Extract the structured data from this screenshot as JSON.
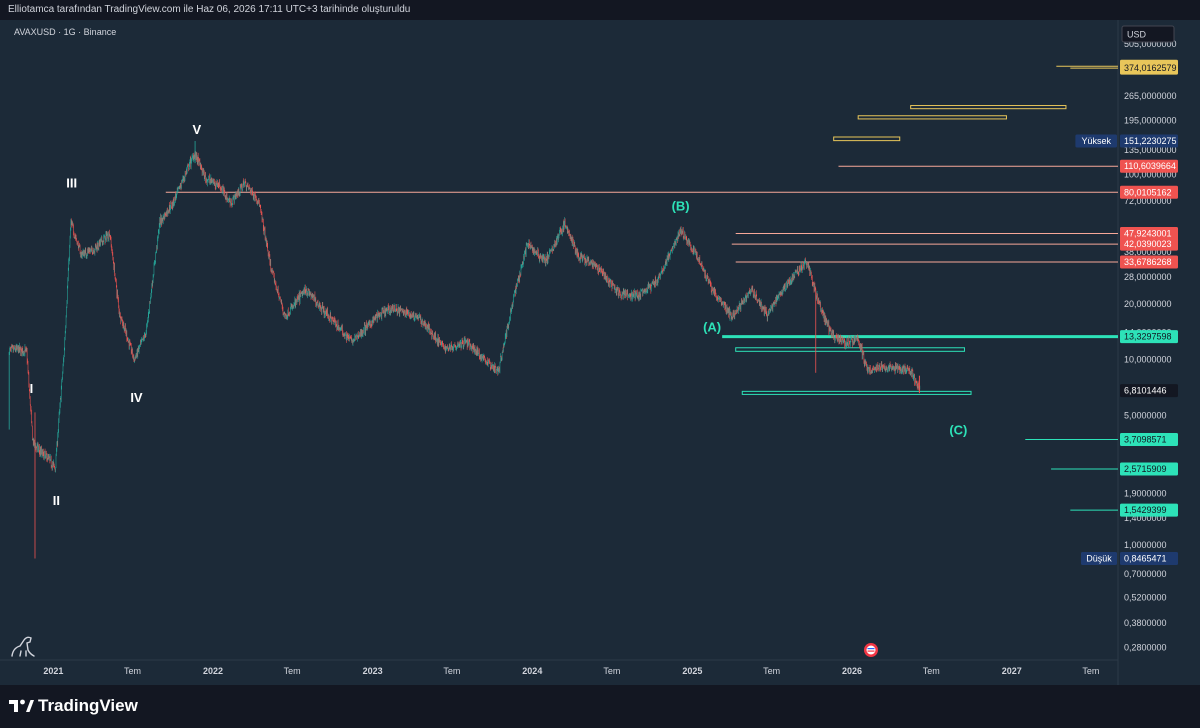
{
  "header": {
    "attribution": "Elliotamca tarafından TradingView.com ile Haz 06, 2026 17:11 UTC+3 tarihinde oluşturuldu"
  },
  "symbol_info": "AVAXUSD · 1G · Binance",
  "currency_button": "USD",
  "brand": {
    "name": "TradingView"
  },
  "colors": {
    "bg": "#1c2a38",
    "up": "#26a69a",
    "down": "#ef5350",
    "resistance": "#f7a899",
    "support": "#2de2b8",
    "box_yellow": "#e8c65a",
    "high_low_badge": "#1e3a6e"
  },
  "chart_data": {
    "type": "candlestick",
    "scale": "log",
    "ylim": [
      0.24,
      680
    ],
    "xlim": [
      "2020-09-01",
      "2027-09-01"
    ],
    "x_ticks": [
      {
        "label": "2021",
        "date": "2021-01-01"
      },
      {
        "label": "Tem",
        "date": "2021-07-01"
      },
      {
        "label": "2022",
        "date": "2022-01-01"
      },
      {
        "label": "Tem",
        "date": "2022-07-01"
      },
      {
        "label": "2023",
        "date": "2023-01-01"
      },
      {
        "label": "Tem",
        "date": "2023-07-01"
      },
      {
        "label": "2024",
        "date": "2024-01-01"
      },
      {
        "label": "Tem",
        "date": "2024-07-01"
      },
      {
        "label": "2025",
        "date": "2025-01-01"
      },
      {
        "label": "Tem",
        "date": "2025-07-01"
      },
      {
        "label": "2026",
        "date": "2026-01-01"
      },
      {
        "label": "Tem",
        "date": "2026-07-01"
      },
      {
        "label": "2027",
        "date": "2027-01-01"
      },
      {
        "label": "Tem",
        "date": "2027-07-01"
      }
    ],
    "y_ticks": [
      {
        "label": "505,0000000",
        "value": 505
      },
      {
        "label": "265,0000000",
        "value": 265
      },
      {
        "label": "195,0000000",
        "value": 195
      },
      {
        "label": "135,0000000",
        "value": 135
      },
      {
        "label": "100,0000000",
        "value": 100
      },
      {
        "label": "72,0000000",
        "value": 72
      },
      {
        "label": "38,0000000",
        "value": 38
      },
      {
        "label": "28,0000000",
        "value": 28
      },
      {
        "label": "20,0000000",
        "value": 20
      },
      {
        "label": "14,0000000",
        "value": 14
      },
      {
        "label": "10,0000000",
        "value": 10
      },
      {
        "label": "5,0000000",
        "value": 5
      },
      {
        "label": "1,9000000",
        "value": 1.9
      },
      {
        "label": "1,4000000",
        "value": 1.4
      },
      {
        "label": "1,0000000",
        "value": 1.0
      },
      {
        "label": "0,7000000",
        "value": 0.7
      },
      {
        "label": "0,5200000",
        "value": 0.52
      },
      {
        "label": "0,3800000",
        "value": 0.38
      },
      {
        "label": "0,2800000",
        "value": 0.28
      }
    ],
    "price_path": [
      [
        "2020-09-22",
        11.2
      ],
      [
        "2020-10-10",
        11.4
      ],
      [
        "2020-11-01",
        11.0
      ],
      [
        "2020-11-15",
        3.6
      ],
      [
        "2020-12-01",
        3.2
      ],
      [
        "2020-12-20",
        2.95
      ],
      [
        "2021-01-05",
        2.6
      ],
      [
        "2021-01-25",
        10.5
      ],
      [
        "2021-02-10",
        55
      ],
      [
        "2021-03-05",
        37
      ],
      [
        "2021-04-01",
        39
      ],
      [
        "2021-05-10",
        48
      ],
      [
        "2021-06-01",
        18
      ],
      [
        "2021-07-05",
        10
      ],
      [
        "2021-08-01",
        14
      ],
      [
        "2021-09-01",
        55
      ],
      [
        "2021-10-01",
        70
      ],
      [
        "2021-11-20",
        130
      ],
      [
        "2021-12-15",
        95
      ],
      [
        "2022-01-15",
        88
      ],
      [
        "2022-02-10",
        70
      ],
      [
        "2022-03-15",
        90
      ],
      [
        "2022-04-15",
        72
      ],
      [
        "2022-05-15",
        30
      ],
      [
        "2022-06-15",
        17
      ],
      [
        "2022-08-01",
        24
      ],
      [
        "2022-09-15",
        18
      ],
      [
        "2022-11-15",
        12.5
      ],
      [
        "2023-01-10",
        17
      ],
      [
        "2023-02-15",
        19
      ],
      [
        "2023-04-15",
        17
      ],
      [
        "2023-06-15",
        11.5
      ],
      [
        "2023-08-01",
        12.5
      ],
      [
        "2023-10-15",
        8.6
      ],
      [
        "2023-11-20",
        22
      ],
      [
        "2023-12-20",
        42
      ],
      [
        "2024-02-01",
        34
      ],
      [
        "2024-03-15",
        54
      ],
      [
        "2024-04-15",
        36
      ],
      [
        "2024-06-01",
        31
      ],
      [
        "2024-07-15",
        23
      ],
      [
        "2024-09-01",
        22
      ],
      [
        "2024-10-15",
        27
      ],
      [
        "2024-12-05",
        50
      ],
      [
        "2025-01-15",
        35
      ],
      [
        "2025-02-15",
        24
      ],
      [
        "2025-04-01",
        17
      ],
      [
        "2025-05-15",
        24
      ],
      [
        "2025-06-20",
        17.5
      ],
      [
        "2025-08-01",
        25
      ],
      [
        "2025-09-20",
        34
      ],
      [
        "2025-10-15",
        21
      ],
      [
        "2025-11-15",
        13.5
      ],
      [
        "2025-12-20",
        12.3
      ],
      [
        "2026-01-15",
        13
      ],
      [
        "2026-02-05",
        8.7
      ],
      [
        "2026-03-15",
        9.2
      ],
      [
        "2026-05-15",
        8.8
      ],
      [
        "2026-06-06",
        6.81
      ]
    ],
    "wave_labels": [
      {
        "text": "I",
        "date": "2020-11-12",
        "price": 6.6,
        "color": "#ffffff"
      },
      {
        "text": "II",
        "date": "2021-01-08",
        "price": 1.65,
        "color": "#ffffff"
      },
      {
        "text": "III",
        "date": "2021-02-12",
        "price": 85,
        "color": "#ffffff"
      },
      {
        "text": "IV",
        "date": "2021-07-10",
        "price": 5.9,
        "color": "#ffffff"
      },
      {
        "text": "V",
        "date": "2021-11-25",
        "price": 165,
        "color": "#ffffff"
      },
      {
        "text": "(A)",
        "date": "2025-02-15",
        "price": 14.2,
        "color": "#2de2b8"
      },
      {
        "text": "(B)",
        "date": "2024-12-05",
        "price": 64,
        "color": "#2de2b8"
      },
      {
        "text": "(C)",
        "date": "2026-09-01",
        "price": 3.95,
        "color": "#2de2b8"
      }
    ],
    "resistance_lines": [
      {
        "price": 80.0105162,
        "label": "80,0105162",
        "from": "2021-09-15"
      },
      {
        "price": 110.6039664,
        "label": "110,6039664",
        "from": "2025-12-01"
      },
      {
        "price": 47.9243001,
        "label": "47,9243001",
        "from": "2025-04-10"
      },
      {
        "price": 42.0390023,
        "label": "42,0390023",
        "from": "2025-04-01"
      },
      {
        "price": 33.6786268,
        "label": "33,6786268",
        "from": "2025-04-10"
      }
    ],
    "support_lines": [
      {
        "price": 13.3297598,
        "label": "13,3297598",
        "from": "2025-03-10",
        "thick": true
      },
      {
        "price": 3.7098571,
        "label": "3,7098571",
        "from": "2027-02-01",
        "thick": false
      },
      {
        "price": 2.5715909,
        "label": "2,5715909",
        "from": "2027-04-01",
        "thick": false
      },
      {
        "price": 1.5429399,
        "label": "1,5429399",
        "from": "2027-05-15",
        "thick": false
      }
    ],
    "yellow_targets": [
      {
        "p1": 382.9606083,
        "p2": 374.0162579,
        "from": "2027-05-15"
      }
    ],
    "yellow_boxes": [
      {
        "from": "2026-05-15",
        "to": "2027-05-05",
        "top": 235,
        "bottom": 226
      },
      {
        "from": "2026-01-15",
        "to": "2026-12-20",
        "top": 207,
        "bottom": 199
      },
      {
        "from": "2025-11-20",
        "to": "2026-04-20",
        "top": 159,
        "bottom": 152
      }
    ],
    "green_boxes": [
      {
        "from": "2025-04-10",
        "to": "2026-09-15",
        "top": 11.6,
        "bottom": 11.1
      },
      {
        "from": "2025-04-25",
        "to": "2026-09-30",
        "top": 6.75,
        "bottom": 6.5
      }
    ],
    "price_badges": [
      {
        "label": "382,9606083",
        "value": 382.9606083,
        "kind": "yellow"
      },
      {
        "label": "374,0162579",
        "value": 374.0162579,
        "kind": "yellow"
      },
      {
        "label": "151,2230275",
        "value": 151.2230275,
        "kind": "high",
        "tag": "Yüksek"
      },
      {
        "label": "110,6039664",
        "value": 110.6039664,
        "kind": "red"
      },
      {
        "label": "80,0105162",
        "value": 80.0105162,
        "kind": "red"
      },
      {
        "label": "47,9243001",
        "value": 47.9243001,
        "kind": "red"
      },
      {
        "label": "42,0390023",
        "value": 42.0390023,
        "kind": "red"
      },
      {
        "label": "33,6786268",
        "value": 33.6786268,
        "kind": "red"
      },
      {
        "label": "13,3297598",
        "value": 13.3297598,
        "kind": "green"
      },
      {
        "label": "6,8101446",
        "value": 6.8101446,
        "kind": "last"
      },
      {
        "label": "3,7098571",
        "value": 3.7098571,
        "kind": "green"
      },
      {
        "label": "2,5715909",
        "value": 2.5715909,
        "kind": "green"
      },
      {
        "label": "1,5429399",
        "value": 1.5429399,
        "kind": "green"
      },
      {
        "label": "0,8465471",
        "value": 0.8465471,
        "kind": "low",
        "tag": "Düşük"
      }
    ]
  }
}
